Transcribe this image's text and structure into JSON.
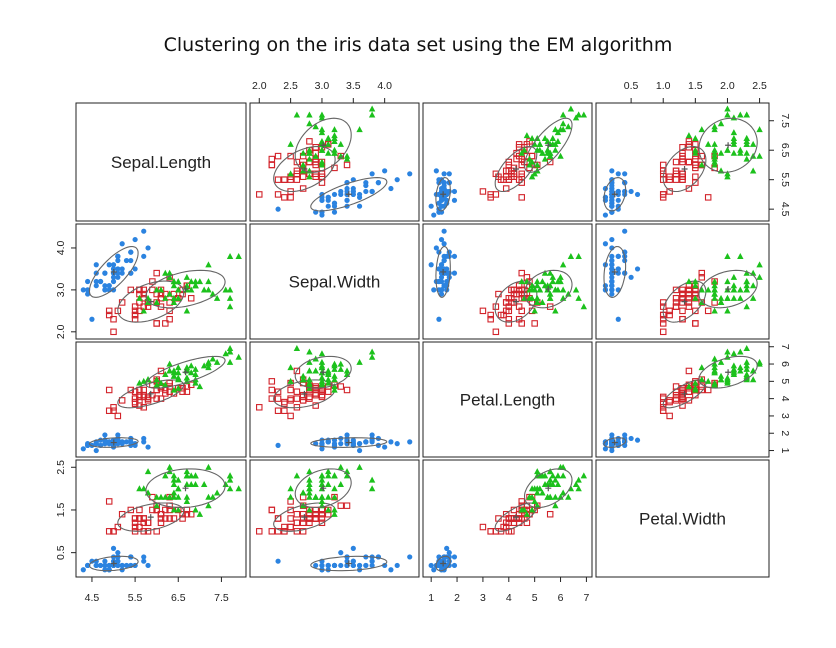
{
  "chart_data": {
    "type": "scatter",
    "subtype": "scatterplot-matrix",
    "title": "Clustering on the iris data set using the EM algorithm",
    "variables": [
      "Sepal.Length",
      "Sepal.Width",
      "Petal.Length",
      "Petal.Width"
    ],
    "axis_ranges": {
      "Sepal.Length": [
        4.2,
        8.0
      ],
      "Sepal.Width": [
        1.9,
        4.5
      ],
      "Petal.Length": [
        0.8,
        7.1
      ],
      "Petal.Width": [
        0.0,
        2.6
      ]
    },
    "ticks": {
      "Sepal.Length": {
        "values": [
          4.5,
          5.5,
          6.5,
          7.5
        ],
        "labels": [
          "4.5",
          "5.5",
          "6.5",
          "7.5"
        ]
      },
      "Sepal.Width": {
        "values": [
          2.0,
          2.5,
          3.0,
          3.5,
          4.0
        ],
        "labels": [
          "2.0",
          "2.5",
          "3.0",
          "3.5",
          "4.0"
        ]
      },
      "Sepal.Width.left": {
        "values": [
          2.0,
          3.0,
          4.0
        ],
        "labels": [
          "2.0",
          "3.0",
          "4.0"
        ]
      },
      "Petal.Length": {
        "values": [
          1,
          2,
          3,
          4,
          5,
          6,
          7
        ],
        "labels": [
          "1",
          "2",
          "3",
          "4",
          "5",
          "6",
          "7"
        ]
      },
      "Petal.Width": {
        "values": [
          0.5,
          1.0,
          1.5,
          2.0,
          2.5
        ],
        "labels": [
          "0.5",
          "1.0",
          "1.5",
          "2.0",
          "2.5"
        ]
      },
      "Petal.Width.left": {
        "values": [
          0.5,
          1.5,
          2.5
        ],
        "labels": [
          "0.5",
          "1.5",
          "2.5"
        ]
      }
    },
    "grid": false,
    "legend": "none",
    "series": [
      {
        "marker": "circle-filled",
        "color": "#2b83e0",
        "sepal_length": [
          5.1,
          4.9,
          4.7,
          4.6,
          5.0,
          5.4,
          4.6,
          5.0,
          4.4,
          4.9,
          5.4,
          4.8,
          4.8,
          4.3,
          5.8,
          5.7,
          5.4,
          5.1,
          5.7,
          5.1,
          5.4,
          5.1,
          4.6,
          5.1,
          4.8,
          5.0,
          5.0,
          5.2,
          5.2,
          4.7,
          4.8,
          5.4,
          5.2,
          5.5,
          4.9,
          5.0,
          5.5,
          4.9,
          4.4,
          5.1,
          5.0,
          4.5,
          4.4,
          5.0,
          5.1,
          4.8,
          5.1,
          4.6,
          5.3,
          5.0
        ],
        "sepal_width": [
          3.5,
          3.0,
          3.2,
          3.1,
          3.6,
          3.9,
          3.4,
          3.4,
          2.9,
          3.1,
          3.7,
          3.4,
          3.0,
          3.0,
          4.0,
          4.4,
          3.9,
          3.5,
          3.8,
          3.8,
          3.4,
          3.7,
          3.6,
          3.3,
          3.4,
          3.0,
          3.4,
          3.5,
          3.4,
          3.2,
          3.1,
          3.4,
          4.1,
          4.2,
          3.1,
          3.2,
          3.5,
          3.6,
          3.0,
          3.4,
          3.5,
          2.3,
          3.2,
          3.5,
          3.8,
          3.0,
          3.8,
          3.2,
          3.7,
          3.3
        ],
        "petal_length": [
          1.4,
          1.4,
          1.3,
          1.5,
          1.4,
          1.7,
          1.4,
          1.5,
          1.4,
          1.5,
          1.5,
          1.6,
          1.4,
          1.1,
          1.2,
          1.5,
          1.3,
          1.4,
          1.7,
          1.5,
          1.7,
          1.5,
          1.0,
          1.7,
          1.9,
          1.6,
          1.6,
          1.5,
          1.4,
          1.6,
          1.6,
          1.5,
          1.5,
          1.4,
          1.5,
          1.2,
          1.3,
          1.4,
          1.3,
          1.5,
          1.3,
          1.3,
          1.3,
          1.6,
          1.9,
          1.4,
          1.6,
          1.4,
          1.5,
          1.4
        ],
        "petal_width": [
          0.2,
          0.2,
          0.2,
          0.2,
          0.2,
          0.4,
          0.3,
          0.2,
          0.2,
          0.1,
          0.2,
          0.2,
          0.1,
          0.1,
          0.2,
          0.4,
          0.4,
          0.3,
          0.3,
          0.3,
          0.2,
          0.4,
          0.2,
          0.5,
          0.2,
          0.2,
          0.4,
          0.2,
          0.2,
          0.2,
          0.2,
          0.4,
          0.1,
          0.2,
          0.2,
          0.2,
          0.2,
          0.1,
          0.2,
          0.2,
          0.3,
          0.3,
          0.2,
          0.6,
          0.4,
          0.3,
          0.2,
          0.2,
          0.2,
          0.2
        ]
      },
      {
        "marker": "square-open",
        "color": "#d2232a",
        "sepal_length": [
          5.5,
          6.5,
          5.7,
          6.3,
          4.9,
          6.6,
          5.2,
          5.0,
          5.9,
          6.0,
          6.1,
          5.6,
          6.7,
          5.6,
          5.8,
          6.2,
          5.6,
          5.9,
          6.1,
          6.3,
          6.1,
          6.4,
          6.6,
          6.8,
          6.0,
          5.7,
          5.5,
          5.5,
          5.8,
          6.0,
          5.4,
          6.0,
          6.7,
          6.3,
          5.6,
          5.5,
          5.5,
          6.1,
          5.8,
          5.0,
          5.6,
          5.7,
          5.7,
          6.2,
          5.1,
          5.7,
          4.9,
          6.3,
          6.0,
          6.1
        ],
        "sepal_width": [
          2.3,
          2.8,
          2.8,
          3.3,
          2.4,
          2.9,
          2.7,
          2.0,
          3.0,
          2.2,
          2.9,
          2.9,
          3.1,
          3.0,
          2.7,
          2.2,
          2.5,
          3.2,
          2.8,
          2.5,
          2.8,
          2.9,
          3.0,
          2.8,
          2.9,
          2.6,
          2.4,
          2.4,
          2.7,
          2.7,
          3.0,
          3.4,
          3.1,
          2.3,
          3.0,
          2.5,
          2.6,
          3.0,
          2.6,
          2.3,
          2.7,
          3.0,
          2.9,
          2.9,
          2.5,
          2.8,
          2.5,
          2.7,
          2.2,
          2.6
        ],
        "petal_length": [
          4.0,
          4.6,
          4.5,
          4.7,
          3.3,
          4.6,
          3.9,
          3.5,
          4.2,
          4.0,
          4.7,
          3.6,
          4.4,
          4.5,
          4.1,
          4.5,
          3.9,
          4.8,
          4.0,
          4.9,
          4.7,
          4.3,
          4.4,
          4.8,
          4.5,
          3.5,
          3.8,
          3.7,
          3.9,
          5.1,
          4.5,
          4.5,
          4.7,
          4.4,
          4.1,
          4.0,
          4.4,
          4.6,
          4.0,
          3.3,
          4.2,
          4.2,
          4.2,
          4.3,
          3.0,
          4.1,
          4.5,
          4.9,
          5.0,
          5.6
        ],
        "petal_width": [
          1.3,
          1.5,
          1.3,
          1.6,
          1.0,
          1.3,
          1.4,
          1.0,
          1.5,
          1.0,
          1.4,
          1.3,
          1.4,
          1.5,
          1.0,
          1.5,
          1.1,
          1.8,
          1.3,
          1.5,
          1.2,
          1.3,
          1.4,
          1.4,
          1.5,
          1.0,
          1.1,
          1.0,
          1.2,
          1.6,
          1.5,
          1.6,
          1.5,
          1.3,
          1.3,
          1.3,
          1.2,
          1.4,
          1.2,
          1.0,
          1.3,
          1.2,
          1.3,
          1.3,
          1.1,
          1.3,
          1.7,
          1.8,
          1.5,
          1.4
        ]
      },
      {
        "marker": "triangle-filled",
        "color": "#1cc11c",
        "sepal_length": [
          7.0,
          6.4,
          6.9,
          6.5,
          6.7,
          6.3,
          6.7,
          6.0,
          6.3,
          5.8,
          7.1,
          6.3,
          6.5,
          7.6,
          7.3,
          6.7,
          7.2,
          6.5,
          6.4,
          6.8,
          5.7,
          5.8,
          6.4,
          6.5,
          7.7,
          7.7,
          6.9,
          5.6,
          7.7,
          6.7,
          7.2,
          6.2,
          6.1,
          6.4,
          7.2,
          7.4,
          7.9,
          6.4,
          7.7,
          6.3,
          6.4,
          6.0,
          6.9,
          6.7,
          6.9,
          5.8,
          6.8,
          6.7,
          6.5,
          6.2
        ],
        "sepal_width": [
          3.2,
          3.2,
          3.1,
          2.8,
          3.0,
          3.3,
          3.0,
          2.7,
          2.9,
          2.7,
          3.0,
          2.9,
          3.0,
          3.0,
          2.9,
          2.5,
          3.6,
          3.2,
          2.7,
          3.0,
          2.5,
          2.8,
          3.2,
          3.0,
          3.8,
          2.6,
          3.2,
          2.8,
          2.8,
          3.3,
          3.2,
          2.8,
          3.0,
          2.8,
          3.0,
          2.8,
          3.8,
          2.8,
          3.0,
          3.4,
          3.1,
          3.0,
          3.1,
          3.1,
          3.1,
          2.7,
          3.2,
          3.0,
          3.0,
          3.4
        ],
        "petal_length": [
          4.7,
          4.5,
          4.9,
          4.6,
          5.0,
          6.0,
          5.2,
          5.1,
          5.6,
          5.1,
          5.9,
          5.6,
          5.8,
          6.6,
          6.3,
          5.8,
          6.1,
          5.1,
          5.3,
          5.5,
          5.0,
          5.1,
          5.3,
          5.5,
          6.7,
          6.9,
          5.7,
          4.9,
          6.7,
          5.7,
          6.0,
          4.8,
          4.9,
          5.6,
          5.8,
          6.1,
          6.4,
          5.6,
          6.1,
          5.6,
          5.5,
          4.8,
          5.4,
          5.6,
          5.1,
          5.1,
          5.9,
          5.2,
          5.2,
          5.4
        ],
        "petal_width": [
          1.4,
          1.5,
          1.5,
          1.5,
          1.7,
          2.5,
          2.3,
          1.6,
          1.8,
          1.9,
          2.1,
          1.8,
          2.2,
          2.1,
          1.8,
          1.8,
          2.5,
          2.0,
          1.9,
          2.1,
          2.0,
          2.4,
          2.3,
          1.8,
          2.2,
          2.3,
          2.3,
          2.0,
          2.0,
          2.1,
          1.8,
          1.8,
          1.8,
          2.1,
          1.6,
          1.9,
          2.0,
          2.2,
          2.3,
          2.4,
          1.8,
          1.8,
          2.1,
          2.4,
          2.3,
          1.9,
          2.3,
          2.3,
          2.0,
          2.3
        ]
      }
    ]
  }
}
